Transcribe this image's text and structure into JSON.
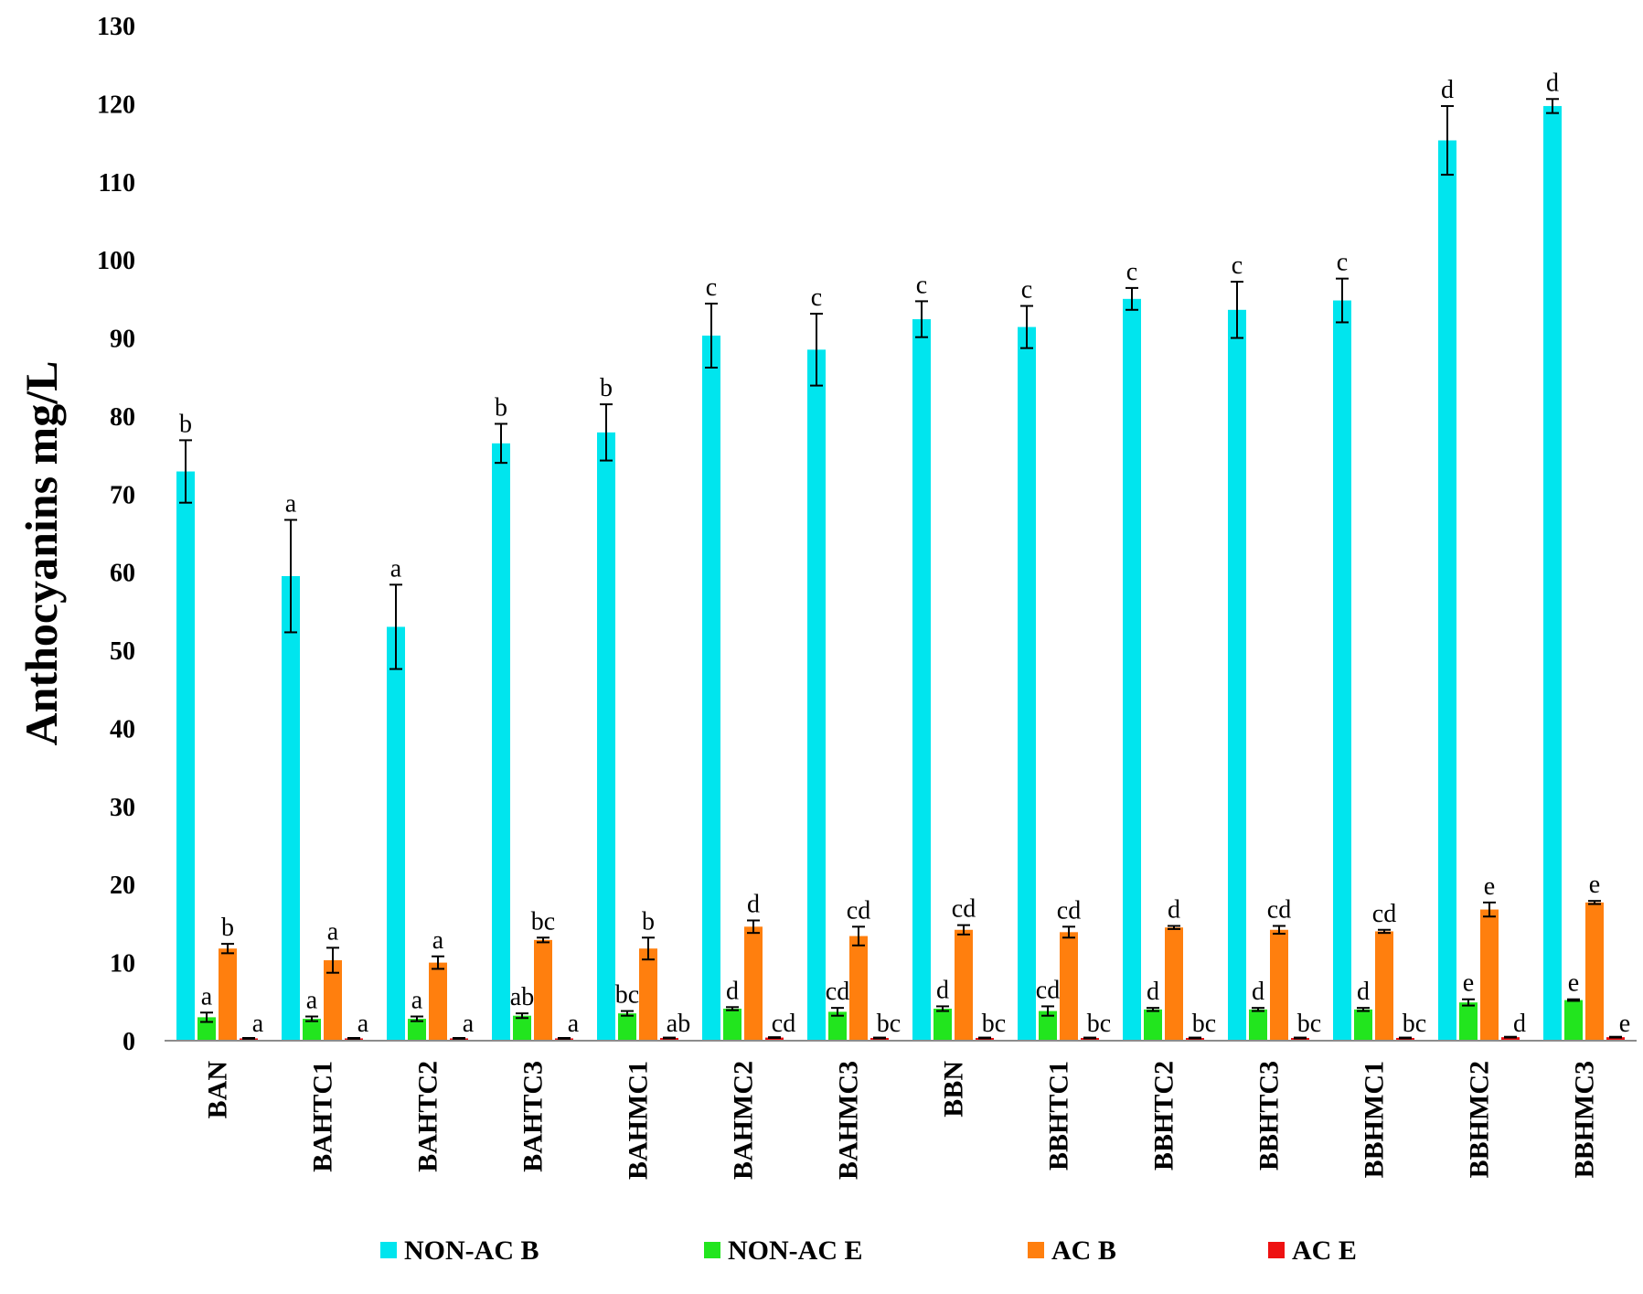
{
  "chart_data": {
    "type": "bar",
    "title": "",
    "xlabel": "",
    "ylabel": "Anthocyanins mg/L",
    "ylim": [
      0,
      130
    ],
    "yticks": [
      0,
      10,
      20,
      30,
      40,
      50,
      60,
      70,
      80,
      90,
      100,
      110,
      120,
      130
    ],
    "categories": [
      "BAN",
      "BAHTC1",
      "BAHTC2",
      "BAHTC3",
      "BAHMC1",
      "BAHMC2",
      "BAHMC3",
      "BBN",
      "BBHTC1",
      "BBHTC2",
      "BBHTC3",
      "BBHMC1",
      "BBHMC2",
      "BBHMC3"
    ],
    "legend_position": "bottom",
    "series": [
      {
        "name": "NON-AC B",
        "color": "#00e5ee",
        "values": [
          72.9,
          59.5,
          53.0,
          76.5,
          77.9,
          90.3,
          88.5,
          92.4,
          91.4,
          95.0,
          93.6,
          94.8,
          115.3,
          119.7
        ],
        "errors": [
          4.0,
          7.2,
          5.4,
          2.5,
          3.6,
          4.1,
          4.6,
          2.3,
          2.7,
          1.4,
          3.6,
          2.8,
          4.4,
          0.9
        ],
        "letters": [
          "b",
          "a",
          "a",
          "b",
          "b",
          "c",
          "c",
          "c",
          "c",
          "c",
          "c",
          "c",
          "d",
          "d"
        ]
      },
      {
        "name": "NON-AC E",
        "color": "#22e51e",
        "values": [
          3.0,
          2.8,
          2.8,
          3.2,
          3.5,
          4.1,
          3.7,
          4.1,
          3.8,
          4.0,
          4.0,
          4.0,
          4.9,
          5.2
        ],
        "errors": [
          0.6,
          0.3,
          0.3,
          0.3,
          0.3,
          0.2,
          0.5,
          0.3,
          0.6,
          0.2,
          0.2,
          0.2,
          0.4,
          0.1
        ],
        "letters": [
          "a",
          "a",
          "a",
          "ab",
          "bc",
          "d",
          "cd",
          "d",
          "cd",
          "d",
          "d",
          "d",
          "e",
          "e"
        ]
      },
      {
        "name": "AC B",
        "color": "#ff7f0e",
        "values": [
          11.8,
          10.3,
          10.0,
          12.9,
          11.8,
          14.6,
          13.4,
          14.2,
          13.9,
          14.5,
          14.2,
          14.0,
          16.8,
          17.7
        ],
        "errors": [
          0.6,
          1.6,
          0.8,
          0.3,
          1.4,
          0.8,
          1.2,
          0.6,
          0.7,
          0.2,
          0.5,
          0.2,
          0.9,
          0.2
        ],
        "letters": [
          "b",
          "a",
          "a",
          "bc",
          "b",
          "d",
          "cd",
          "cd",
          "cd",
          "d",
          "cd",
          "cd",
          "e",
          "e"
        ]
      },
      {
        "name": "AC E",
        "color": "#ee1111",
        "values": [
          0.3,
          0.3,
          0.3,
          0.3,
          0.35,
          0.4,
          0.35,
          0.35,
          0.35,
          0.35,
          0.35,
          0.35,
          0.45,
          0.45
        ],
        "errors": [
          0.05,
          0.05,
          0.05,
          0.05,
          0.05,
          0.05,
          0.05,
          0.05,
          0.05,
          0.05,
          0.05,
          0.05,
          0.05,
          0.05
        ],
        "letters": [
          "a",
          "a",
          "a",
          "a",
          "ab",
          "cd",
          "bc",
          "bc",
          "bc",
          "bc",
          "bc",
          "bc",
          "d",
          "e"
        ]
      }
    ]
  }
}
